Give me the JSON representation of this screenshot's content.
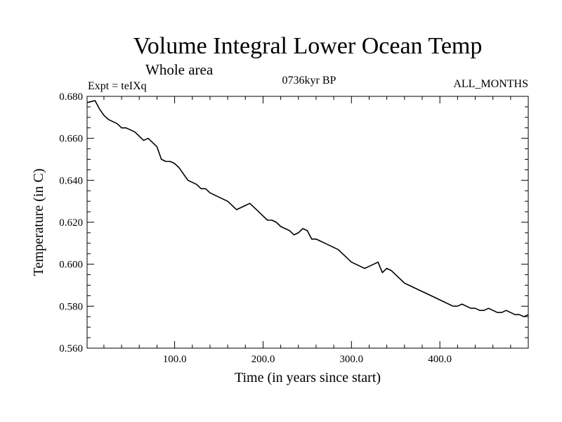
{
  "chart_data": {
    "type": "line",
    "title": "Volume Integral Lower Ocean Temp",
    "subtitle": "Whole area",
    "experiment": "Expt = teIXq",
    "period": "0736kyr BP",
    "months": "ALL_MONTHS",
    "xlabel": "Time (in years since start)",
    "ylabel": "Temperature (in C)",
    "xlim": [
      1,
      500
    ],
    "ylim": [
      0.56,
      0.68
    ],
    "x_ticks": [
      100,
      200,
      300,
      400
    ],
    "x_tick_labels": [
      "100.0",
      "200.0",
      "300.0",
      "400.0"
    ],
    "y_ticks": [
      0.56,
      0.58,
      0.6,
      0.62,
      0.64,
      0.66,
      0.68
    ],
    "y_tick_labels": [
      "0.560",
      "0.580",
      "0.600",
      "0.620",
      "0.640",
      "0.660",
      "0.680"
    ],
    "grid": false,
    "series": [
      {
        "x": [
          1,
          10,
          15,
          20,
          25,
          30,
          35,
          40,
          45,
          50,
          55,
          60,
          65,
          70,
          75,
          80,
          85,
          90,
          95,
          100,
          105,
          110,
          115,
          120,
          125,
          130,
          135,
          140,
          145,
          150,
          155,
          160,
          165,
          170,
          175,
          180,
          185,
          190,
          195,
          200,
          205,
          210,
          215,
          220,
          225,
          230,
          235,
          240,
          245,
          250,
          255,
          260,
          265,
          270,
          275,
          280,
          285,
          290,
          295,
          300,
          305,
          310,
          315,
          320,
          325,
          330,
          335,
          340,
          345,
          350,
          355,
          360,
          365,
          370,
          375,
          380,
          385,
          390,
          395,
          400,
          405,
          410,
          415,
          420,
          425,
          430,
          435,
          440,
          445,
          450,
          455,
          460,
          465,
          470,
          475,
          480,
          485,
          490,
          495,
          500
        ],
        "y": [
          0.677,
          0.678,
          0.674,
          0.671,
          0.669,
          0.668,
          0.667,
          0.665,
          0.665,
          0.664,
          0.663,
          0.661,
          0.659,
          0.66,
          0.658,
          0.656,
          0.65,
          0.649,
          0.649,
          0.648,
          0.646,
          0.643,
          0.64,
          0.639,
          0.638,
          0.636,
          0.636,
          0.634,
          0.633,
          0.632,
          0.631,
          0.63,
          0.628,
          0.626,
          0.627,
          0.628,
          0.629,
          0.627,
          0.625,
          0.623,
          0.621,
          0.621,
          0.62,
          0.618,
          0.617,
          0.616,
          0.614,
          0.615,
          0.617,
          0.616,
          0.612,
          0.612,
          0.611,
          0.61,
          0.609,
          0.608,
          0.607,
          0.605,
          0.603,
          0.601,
          0.6,
          0.599,
          0.598,
          0.599,
          0.6,
          0.601,
          0.596,
          0.598,
          0.597,
          0.595,
          0.593,
          0.591,
          0.59,
          0.589,
          0.588,
          0.587,
          0.586,
          0.585,
          0.584,
          0.583,
          0.582,
          0.581,
          0.58,
          0.58,
          0.581,
          0.58,
          0.579,
          0.579,
          0.578,
          0.578,
          0.579,
          0.578,
          0.577,
          0.577,
          0.578,
          0.577,
          0.576,
          0.576,
          0.575,
          0.576
        ]
      }
    ]
  }
}
